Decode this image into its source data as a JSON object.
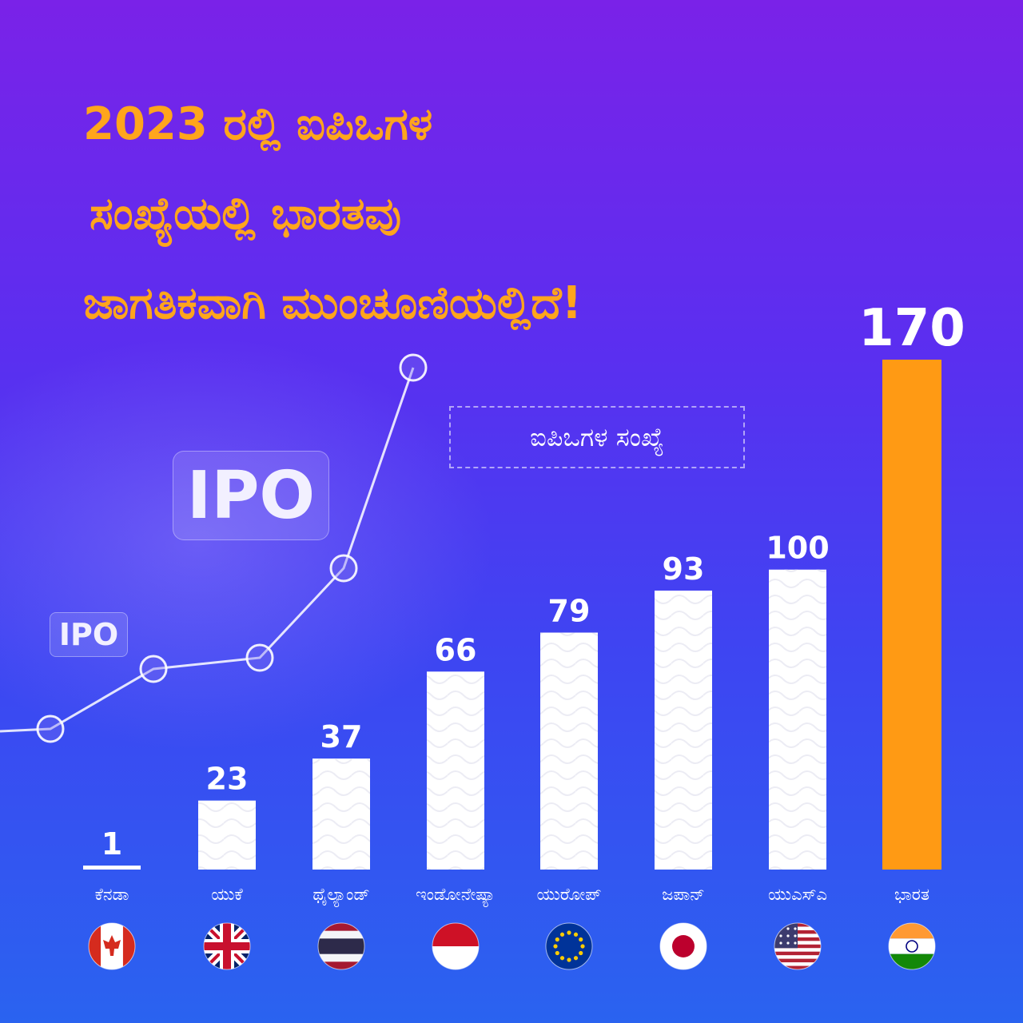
{
  "title_lines": [
    "2023 ರಲ್ಲಿ ಐಪಿಒಗಳ",
    "ಸಂಖ್ಯೆಯಲ್ಲಿ ಭಾರತವು",
    "ಜಾಗತಿಕವಾಗಿ ಮುಂಚೂಣಿಯಲ್ಲಿದೆ!"
  ],
  "legend_label": "ಐಪಿಒಗಳ ಸಂಖ್ಯೆ",
  "decor": {
    "ipo_big": "IPO",
    "ipo_small": "IPO"
  },
  "colors": {
    "title": "#ffa51c",
    "highlight_bar": "#ff9a14",
    "bar": "#ffffff",
    "background_top": "#7a22e8",
    "background_bottom": "#2a63f0"
  },
  "chart_data": {
    "type": "bar",
    "categories": [
      "ಕೆನಡಾ",
      "ಯುಕೆ",
      "ಥೈಲ್ಯಾಂಡ್",
      "ಇಂಡೋನೇಷ್ಯಾ",
      "ಯುರೋಪ್",
      "ಜಪಾನ್",
      "ಯುಎಸ್ಎ",
      "ಭಾರತ"
    ],
    "values": [
      1,
      23,
      37,
      66,
      79,
      93,
      100,
      170
    ],
    "value_labels": [
      "1",
      "23",
      "37",
      "66",
      "79",
      "93",
      "100",
      "170"
    ],
    "flags": [
      "canada-flag-icon",
      "uk-flag-icon",
      "thailand-flag-icon",
      "indonesia-flag-icon",
      "eu-flag-icon",
      "japan-flag-icon",
      "usa-flag-icon",
      "india-flag-icon"
    ],
    "highlight_index": 7,
    "ylim": [
      0,
      170
    ],
    "legend": "ಐಪಿಒಗಳ ಸಂಖ್ಯೆ"
  }
}
